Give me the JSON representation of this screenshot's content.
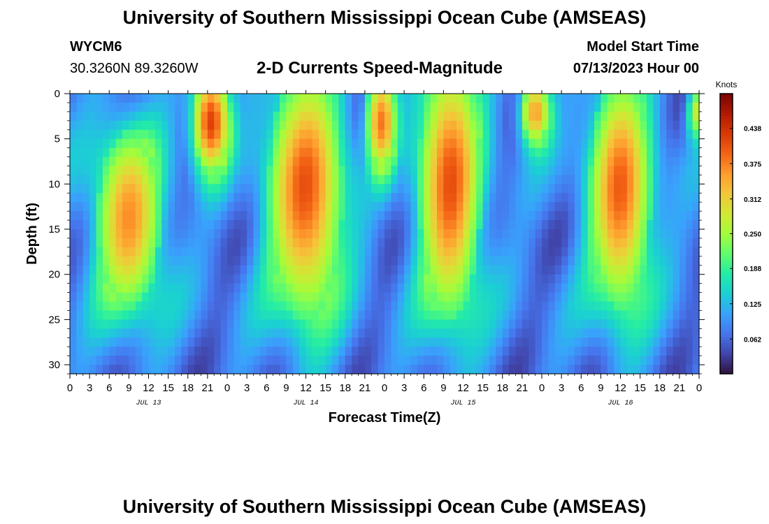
{
  "header": {
    "title": "University of Southern Mississippi Ocean Cube (AMSEAS)",
    "station_id": "WYCM6",
    "station_coords": "30.3260N  89.3260W",
    "chart_title": "2-D Currents Speed-Magnitude",
    "model_start_label": "Model Start Time",
    "model_start_value": "07/13/2023 Hour 00"
  },
  "footer": {
    "title": "University of Southern Mississippi Ocean Cube (AMSEAS)"
  },
  "chart_data": {
    "type": "heatmap",
    "title": "2-D Currents Speed-Magnitude",
    "xlabel": "Forecast Time(Z)",
    "ylabel": "Depth (ft)",
    "x_range_hours": [
      0,
      96
    ],
    "y_range_ft": [
      0,
      31
    ],
    "x_ticks": [
      "0",
      "3",
      "6",
      "9",
      "12",
      "15",
      "18",
      "21",
      "0",
      "3",
      "6",
      "9",
      "12",
      "15",
      "18",
      "21",
      "0",
      "3",
      "6",
      "9",
      "12",
      "15",
      "18",
      "21",
      "0",
      "3",
      "6",
      "9",
      "12",
      "15",
      "18",
      "21",
      "0"
    ],
    "y_ticks": [
      0,
      5,
      10,
      15,
      20,
      25,
      30
    ],
    "date_labels": [
      {
        "label": "JUL 13",
        "hour": 12
      },
      {
        "label": "JUL 14",
        "hour": 36
      },
      {
        "label": "JUL 15",
        "hour": 60
      },
      {
        "label": "JUL 16",
        "hour": 84
      }
    ],
    "colorbar": {
      "unit": "Knots",
      "range": [
        0,
        0.5
      ],
      "ticks": [
        "0.438",
        "0.375",
        "0.312",
        "0.250",
        "0.188",
        "0.125",
        "0.062"
      ],
      "tick_values": [
        0.438,
        0.375,
        0.312,
        0.25,
        0.188,
        0.125,
        0.062
      ],
      "colors": [
        "#30123b",
        "#4145ab",
        "#4675ed",
        "#39a2fc",
        "#1bcfd4",
        "#24eca6",
        "#61fc6c",
        "#a4fc3b",
        "#d1e834",
        "#f3c63a",
        "#fe9b2d",
        "#f36315",
        "#d93806",
        "#b11901",
        "#7a0402"
      ]
    },
    "blobs": [
      {
        "t_center": 9,
        "t_width": 5.5,
        "depth_center": 14,
        "depth_width": 11,
        "peak_knots": 0.36
      },
      {
        "t_center": 21.5,
        "t_width": 3,
        "depth_center": 3,
        "depth_width": 6,
        "peak_knots": 0.43
      },
      {
        "t_center": 36,
        "t_width": 6,
        "depth_center": 11,
        "depth_width": 15,
        "peak_knots": 0.4
      },
      {
        "t_center": 47.5,
        "t_width": 2.5,
        "depth_center": 3,
        "depth_width": 6,
        "peak_knots": 0.38
      },
      {
        "t_center": 58,
        "t_width": 5,
        "depth_center": 10,
        "depth_width": 16,
        "peak_knots": 0.4
      },
      {
        "t_center": 71,
        "t_width": 2.5,
        "depth_center": 2,
        "depth_width": 4,
        "peak_knots": 0.36
      },
      {
        "t_center": 84,
        "t_width": 5,
        "depth_center": 11,
        "depth_width": 14,
        "peak_knots": 0.39
      },
      {
        "t_center": 95.5,
        "t_width": 1.5,
        "depth_center": 2,
        "depth_width": 3,
        "peak_knots": 0.28
      }
    ],
    "background_knots": 0.08,
    "grid": false
  }
}
